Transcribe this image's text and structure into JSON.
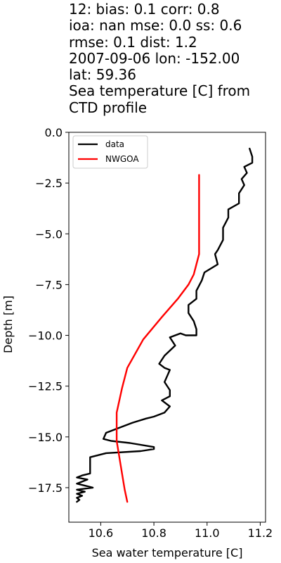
{
  "chart_data": {
    "type": "line",
    "title_lines": [
      "12: bias: 0.1  corr: 0.8",
      "ioa: nan  mse: 0.0  ss: 0.6",
      "rmse: 0.1  dist: 1.2",
      "2007-09-06 lon: -152.00",
      "lat: 59.36",
      "Sea temperature [C] from",
      "CTD profile"
    ],
    "xlabel": "Sea water temperature [C]",
    "ylabel": "Depth [m]",
    "xlim": [
      10.48,
      11.22
    ],
    "ylim": [
      -19.2,
      0
    ],
    "xticks": [
      10.6,
      10.8,
      11.0,
      11.2
    ],
    "xtick_labels": [
      "10.6",
      "10.8",
      "11.0",
      "11.2"
    ],
    "yticks": [
      0.0,
      -2.5,
      -5.0,
      -7.5,
      -10.0,
      -12.5,
      -15.0,
      -17.5
    ],
    "ytick_labels": [
      "0.0",
      "−2.5",
      "−5.0",
      "−7.5",
      "−10.0",
      "−12.5",
      "−15.0",
      "−17.5"
    ],
    "legend_position": "upper-left",
    "series": [
      {
        "name": "data",
        "color": "#000000",
        "x": [
          11.16,
          11.17,
          11.17,
          11.14,
          11.15,
          11.13,
          11.14,
          11.12,
          11.12,
          11.08,
          11.08,
          11.06,
          11.06,
          11.04,
          11.03,
          11.04,
          10.99,
          10.98,
          10.96,
          10.96,
          10.93,
          10.93,
          10.95,
          10.96,
          10.96,
          10.92,
          10.9,
          10.86,
          10.87,
          10.88,
          10.84,
          10.82,
          10.84,
          10.86,
          10.85,
          10.84,
          10.86,
          10.86,
          10.83,
          10.86,
          10.84,
          10.8,
          10.77,
          10.72,
          10.7,
          10.62,
          10.61,
          10.64,
          10.71,
          10.8,
          10.8,
          10.75,
          10.62,
          10.56,
          10.56,
          10.53,
          10.51,
          10.55,
          10.51,
          10.57,
          10.51,
          10.54,
          10.51,
          10.53,
          10.51,
          10.52,
          10.51
        ],
        "y": [
          -0.8,
          -1.2,
          -1.5,
          -1.7,
          -2.0,
          -2.3,
          -2.6,
          -3.0,
          -3.5,
          -3.8,
          -4.2,
          -4.7,
          -5.3,
          -5.8,
          -6.0,
          -6.5,
          -6.9,
          -7.3,
          -7.8,
          -8.2,
          -8.5,
          -8.9,
          -9.3,
          -9.7,
          -10.0,
          -10.0,
          -9.9,
          -10.1,
          -10.3,
          -10.5,
          -11.0,
          -11.4,
          -11.6,
          -11.7,
          -12.0,
          -12.3,
          -12.7,
          -13.0,
          -13.2,
          -13.5,
          -13.8,
          -14.0,
          -14.1,
          -14.3,
          -14.4,
          -14.8,
          -15.1,
          -15.2,
          -15.3,
          -15.5,
          -15.6,
          -15.7,
          -15.8,
          -16.0,
          -16.8,
          -16.9,
          -17.0,
          -17.1,
          -17.3,
          -17.5,
          -17.6,
          -17.7,
          -17.8,
          -17.9,
          -18.0,
          -18.1,
          -18.2
        ]
      },
      {
        "name": "NWGOA",
        "color": "#ff0000",
        "x": [
          10.97,
          10.97,
          10.97,
          10.97,
          10.97,
          10.96,
          10.95,
          10.93,
          10.89,
          10.83,
          10.76,
          10.7,
          10.68,
          10.66,
          10.66,
          10.66,
          10.67,
          10.68,
          10.69,
          10.7
        ],
        "y": [
          -2.1,
          -3.0,
          -4.0,
          -5.0,
          -6.0,
          -6.5,
          -7.0,
          -7.5,
          -8.2,
          -9.1,
          -10.2,
          -11.6,
          -12.6,
          -13.8,
          -14.5,
          -15.2,
          -16.0,
          -16.8,
          -17.6,
          -18.2
        ]
      }
    ]
  }
}
